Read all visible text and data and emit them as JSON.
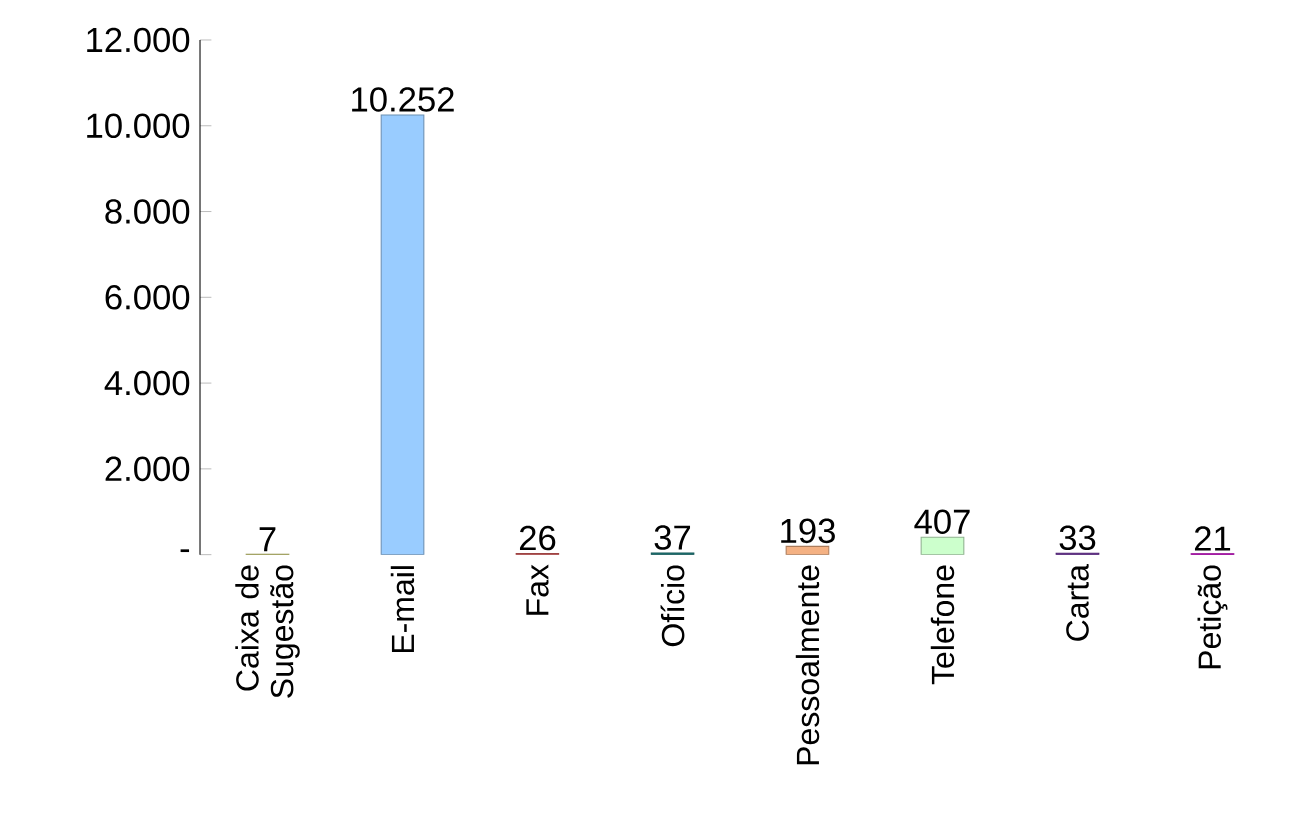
{
  "chart_data": {
    "type": "bar",
    "categories": [
      "Caixa de Sugestão",
      "E-mail",
      "Fax",
      "Ofício",
      "Pessoalmente",
      "Telefone",
      "Carta",
      "Petição"
    ],
    "values": [
      7,
      10252,
      26,
      37,
      193,
      407,
      33,
      21
    ],
    "value_labels": [
      "7",
      "10.252",
      "26",
      "37",
      "193",
      "407",
      "33",
      "21"
    ],
    "colors": [
      "#c8c864",
      "#99ccff",
      "#e06060",
      "#1e7b7b",
      "#f4b183",
      "#ccffcc",
      "#7030a0",
      "#cc00cc"
    ],
    "ylim": [
      0,
      12000
    ],
    "yticks": [
      {
        "value": 0,
        "label": "-"
      },
      {
        "value": 2000,
        "label": "2.000"
      },
      {
        "value": 4000,
        "label": "4.000"
      },
      {
        "value": 6000,
        "label": "6.000"
      },
      {
        "value": 8000,
        "label": "8.000"
      },
      {
        "value": 10000,
        "label": "10.000"
      },
      {
        "value": 12000,
        "label": "12.000"
      }
    ],
    "grid": false
  }
}
